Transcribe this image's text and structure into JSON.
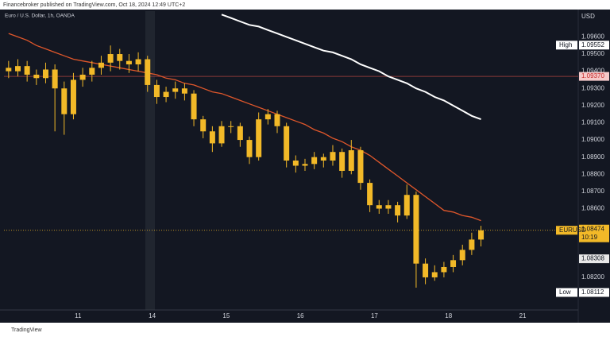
{
  "chart_data": {
    "type": "candlestick",
    "publisher": "Financebroker published on TradingView.com, Oct 18, 2024 12:49 UTC+2",
    "title": "Euro / U.S. Dollar, 1h, OANDA",
    "y_axis_label": "USD",
    "source": "TradingView",
    "candle_color": "#f2b928",
    "categories": [
      null,
      null,
      null,
      null,
      null,
      null,
      null,
      null,
      "11",
      null,
      null,
      null,
      null,
      null,
      null,
      null,
      "14",
      null,
      null,
      null,
      null,
      null,
      null,
      null,
      "15",
      null,
      null,
      null,
      null,
      null,
      null,
      null,
      "16",
      null,
      null,
      null,
      null,
      null,
      null,
      null,
      "17",
      null,
      null,
      null,
      null,
      null,
      null,
      null,
      "18",
      null,
      null,
      null,
      null,
      null,
      null,
      null,
      "21",
      null,
      null,
      null,
      null,
      null
    ],
    "open": [
      1.0942,
      1.094,
      1.0943,
      1.0938,
      1.0936,
      1.0941,
      1.093,
      1.0915,
      1.0935,
      1.0938,
      1.0942,
      1.0945,
      1.095,
      1.0946,
      1.0944,
      1.0947,
      1.0932,
      1.0925,
      1.0928,
      1.093,
      1.0927,
      1.0912,
      1.0905,
      1.0898,
      1.0908,
      1.0908,
      1.09,
      1.089,
      1.0912,
      1.0915,
      1.0908,
      1.0888,
      1.0885,
      1.0886,
      1.089,
      1.0888,
      1.0893,
      1.0882,
      1.0894,
      1.0875,
      1.0862,
      1.086,
      1.0862,
      1.0856,
      1.0868,
      1.0828,
      1.082,
      1.0823,
      1.0826,
      1.083,
      1.0836,
      1.0842,
      null,
      null,
      null,
      null,
      null,
      null,
      null,
      null,
      null,
      null
    ],
    "high": [
      1.0946,
      1.0947,
      1.0946,
      1.0941,
      1.0945,
      1.0944,
      1.0934,
      1.0939,
      1.0942,
      1.0946,
      1.0949,
      1.0955,
      1.0953,
      1.095,
      1.0951,
      1.0949,
      1.0935,
      1.0931,
      1.0934,
      1.0933,
      1.0929,
      1.0914,
      1.0908,
      1.0911,
      1.0911,
      1.091,
      1.0902,
      1.0916,
      1.0918,
      1.0917,
      1.091,
      1.0891,
      1.0889,
      1.0893,
      1.0892,
      1.0897,
      1.0895,
      1.09,
      1.0896,
      1.0877,
      1.0865,
      1.0865,
      1.0864,
      1.0874,
      1.087,
      1.0831,
      1.0827,
      1.0829,
      1.0833,
      1.0839,
      1.0846,
      1.085,
      null,
      null,
      null,
      null,
      null,
      null,
      null,
      null,
      null,
      null
    ],
    "low": [
      1.0936,
      1.0937,
      1.0934,
      1.0932,
      1.0933,
      1.0905,
      1.0903,
      1.0912,
      1.0931,
      1.0934,
      1.0938,
      1.094,
      1.0941,
      1.0939,
      1.094,
      1.0928,
      1.0921,
      1.0922,
      1.0924,
      1.0923,
      1.0908,
      1.0901,
      1.0893,
      1.0896,
      1.0904,
      1.0896,
      1.0886,
      1.0888,
      1.0909,
      1.0904,
      1.0884,
      1.0881,
      1.0882,
      1.0883,
      1.0884,
      1.0885,
      1.0878,
      1.088,
      1.0871,
      1.0858,
      1.0857,
      1.0857,
      1.0852,
      1.0854,
      1.0814,
      1.0816,
      1.0818,
      1.082,
      1.0823,
      1.0827,
      1.0833,
      1.0838,
      null,
      null,
      null,
      null,
      null,
      null,
      null,
      null,
      null,
      null
    ],
    "close": [
      1.094,
      1.0943,
      1.0938,
      1.0936,
      1.0941,
      1.093,
      1.0915,
      1.0935,
      1.0938,
      1.0942,
      1.0945,
      1.095,
      1.0946,
      1.0944,
      1.0947,
      1.0932,
      1.0925,
      1.0928,
      1.093,
      1.0927,
      1.0912,
      1.0905,
      1.0898,
      1.0908,
      1.0908,
      1.09,
      1.089,
      1.0912,
      1.0915,
      1.0908,
      1.0888,
      1.0885,
      1.0886,
      1.089,
      1.0888,
      1.0893,
      1.0882,
      1.0894,
      1.0875,
      1.0862,
      1.086,
      1.0862,
      1.0856,
      1.0868,
      1.0828,
      1.082,
      1.0823,
      1.0826,
      1.083,
      1.0836,
      1.0842,
      1.08474,
      null,
      null,
      null,
      null,
      null,
      null,
      null,
      null,
      null,
      null
    ],
    "overlays": [
      {
        "color": "#e0572b",
        "values": [
          1.0962,
          1.096,
          1.0958,
          1.0955,
          1.0953,
          1.0951,
          1.0949,
          1.0947,
          1.0946,
          1.0945,
          1.0944,
          1.0943,
          1.0942,
          1.0941,
          1.094,
          1.0939,
          1.0938,
          1.0936,
          1.0935,
          1.0933,
          1.0932,
          1.093,
          1.0928,
          1.0927,
          1.0925,
          1.0923,
          1.0921,
          1.0919,
          1.0917,
          1.0915,
          1.0913,
          1.0911,
          1.0909,
          1.0906,
          1.0904,
          1.0901,
          1.0899,
          1.0896,
          1.0894,
          1.0891,
          1.0887,
          1.0883,
          1.0879,
          1.0875,
          1.0871,
          1.0867,
          1.0863,
          1.0859,
          1.0858,
          1.0856,
          1.0855,
          1.0853,
          null,
          null,
          null,
          null,
          null,
          null,
          null,
          null,
          null,
          null
        ]
      },
      {
        "color": "#ffffff",
        "values": [
          null,
          null,
          null,
          null,
          null,
          null,
          null,
          null,
          null,
          null,
          null,
          null,
          null,
          null,
          null,
          null,
          null,
          null,
          null,
          null,
          null,
          null,
          null,
          1.0973,
          1.0971,
          1.0969,
          1.0967,
          1.0966,
          1.0964,
          1.0962,
          1.096,
          1.0958,
          1.0956,
          1.0954,
          1.0952,
          1.0951,
          1.0949,
          1.0947,
          1.0944,
          1.0942,
          1.094,
          1.0937,
          1.0935,
          1.0933,
          1.093,
          1.0928,
          1.0925,
          1.0923,
          1.092,
          1.0917,
          1.0914,
          1.0912,
          null,
          null,
          null,
          null,
          null,
          null,
          null,
          null,
          null,
          null
        ]
      }
    ],
    "markers": [
      {
        "label": "High",
        "value": 1.09552,
        "value_label": "1.09552",
        "color": "#ffffff",
        "text_color": "#131722",
        "line": "none"
      },
      {
        "value": 1.0937,
        "value_label": "1.09370",
        "color": "#f6c9c9",
        "text_color": "#c62828",
        "line": "solid"
      },
      {
        "label": "EURUSD",
        "value": 1.08474,
        "value_label": "1.08474",
        "extra": "10:19",
        "color": "#f2b928",
        "text_color": "#131722",
        "line": "dotted"
      },
      {
        "value": 1.08308,
        "value_label": "1.08308",
        "color": "#e8e8e8",
        "text_color": "#131722",
        "line": "none"
      },
      {
        "label": "Low",
        "value": 1.08112,
        "value_label": "1.08112",
        "color": "#ffffff",
        "text_color": "#131722",
        "line": "none"
      }
    ],
    "ylim": [
      1.0801,
      1.0975
    ],
    "yticks": [
      {
        "value": 1.096,
        "label": "1.09600"
      },
      {
        "value": 1.095,
        "label": "1.09500"
      },
      {
        "value": 1.094,
        "label": "1.09400"
      },
      {
        "value": 1.093,
        "label": "1.09300"
      },
      {
        "value": 1.092,
        "label": "1.09200"
      },
      {
        "value": 1.091,
        "label": "1.09100"
      },
      {
        "value": 1.09,
        "label": "1.09000"
      },
      {
        "value": 1.089,
        "label": "1.08900"
      },
      {
        "value": 1.088,
        "label": "1.08800"
      },
      {
        "value": 1.087,
        "label": "1.08700"
      },
      {
        "value": 1.086,
        "label": "1.08600"
      },
      {
        "value": 1.082,
        "label": "1.08200"
      }
    ],
    "grid": false
  }
}
